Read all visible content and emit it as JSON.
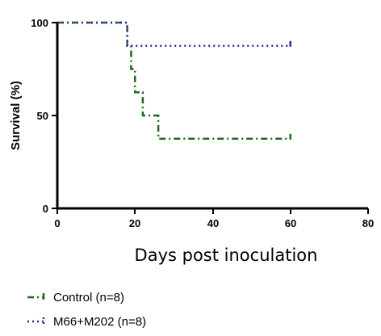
{
  "chart_data": {
    "type": "line",
    "subtype": "kaplan-meier-step",
    "xlabel": "Days post inoculation",
    "ylabel": "Survival (%)",
    "xlim": [
      0,
      80
    ],
    "ylim": [
      0,
      100
    ],
    "xticks": [
      "0",
      "20",
      "40",
      "60",
      "80"
    ],
    "yticks": [
      "0",
      "50",
      "100"
    ],
    "grid": false,
    "legend_position": "bottom-left",
    "series": [
      {
        "name": "Control (n=8)",
        "color": "#1e6b1e",
        "dash": "dash-dot",
        "x": [
          0,
          18,
          19,
          20,
          21,
          22,
          23,
          26,
          60
        ],
        "y": [
          100,
          87.5,
          75,
          62.5,
          62.5,
          50,
          50,
          37.5,
          37.5
        ]
      },
      {
        "name": "M66+M202 (n=8)",
        "color": "#2a2aa0",
        "dash": "dotted",
        "x": [
          0,
          18,
          60
        ],
        "y": [
          100,
          87.5,
          87.5
        ]
      }
    ]
  }
}
